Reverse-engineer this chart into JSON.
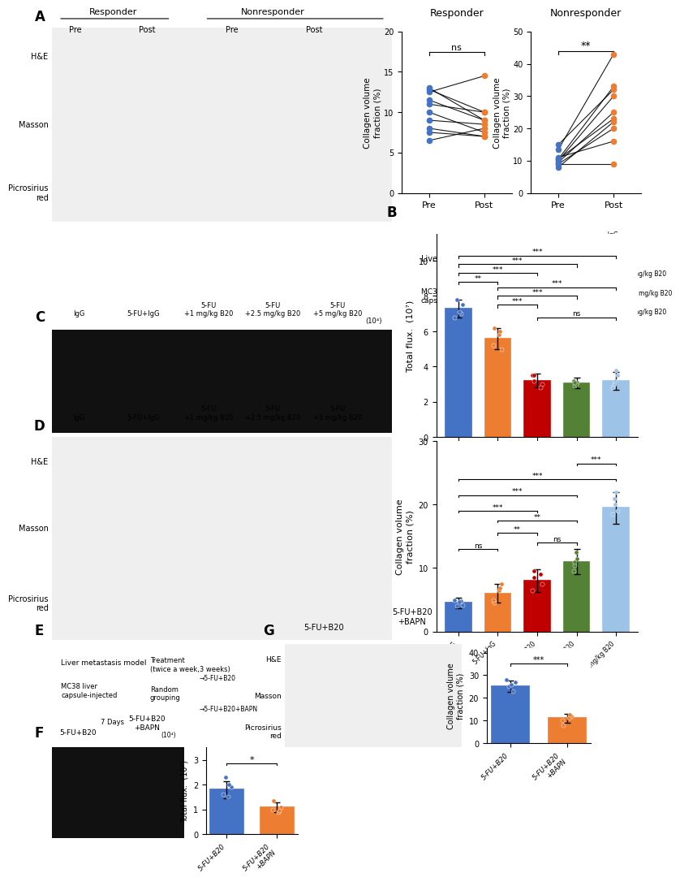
{
  "responder_pre": [
    6.5,
    11.0,
    11.5,
    12.5,
    10.0,
    9.0,
    7.5,
    8.0,
    13.0,
    12.8
  ],
  "responder_post": [
    8.0,
    10.0,
    9.0,
    14.5,
    7.5,
    8.5,
    7.0,
    7.0,
    9.0,
    10.0
  ],
  "nonresponder_pre": [
    9.0,
    10.0,
    10.5,
    8.0,
    9.5,
    15.0,
    11.0,
    13.5,
    9.0,
    10.5
  ],
  "nonresponder_post": [
    20.0,
    30.0,
    23.0,
    22.0,
    25.0,
    32.0,
    16.0,
    43.0,
    9.0,
    33.0
  ],
  "bar_C_means": [
    7.3,
    5.6,
    3.2,
    3.05,
    3.2
  ],
  "bar_C_errors": [
    0.5,
    0.6,
    0.4,
    0.3,
    0.5
  ],
  "bar_C_colors": [
    "#4472C4",
    "#ED7D31",
    "#C00000",
    "#538135",
    "#9DC3E6"
  ],
  "bar_C_dots": [
    [
      7.8,
      7.5,
      7.0,
      7.1,
      6.8
    ],
    [
      6.2,
      5.2,
      5.0,
      5.8,
      6.0
    ],
    [
      3.5,
      3.0,
      2.8,
      3.5,
      3.2
    ],
    [
      3.2,
      2.9,
      3.1,
      3.0,
      3.1
    ],
    [
      3.5,
      2.8,
      3.0,
      3.2,
      3.8
    ]
  ],
  "bar_C_xlabels": [
    "IgG",
    "5-FU+IgG",
    "5-FU+1 mg/kg B20",
    "5-FU+2.5 mg/kg B20",
    "5-FU+5 mg/kg B20"
  ],
  "bar_D_means": [
    4.5,
    6.0,
    8.0,
    11.0,
    19.5
  ],
  "bar_D_errors": [
    0.8,
    1.5,
    1.8,
    2.0,
    2.5
  ],
  "bar_D_colors": [
    "#4472C4",
    "#ED7D31",
    "#C00000",
    "#538135",
    "#9DC3E6"
  ],
  "bar_D_dots": [
    [
      4.0,
      4.2,
      4.8,
      4.7,
      5.0
    ],
    [
      4.5,
      5.0,
      7.5,
      6.5,
      6.8
    ],
    [
      6.5,
      7.5,
      9.0,
      8.5,
      9.5
    ],
    [
      9.5,
      10.5,
      11.5,
      12.5,
      11.0
    ],
    [
      19.0,
      18.5,
      21.0,
      20.0,
      22.0
    ]
  ],
  "bar_D_xlabels": [
    "IgG",
    "5-FU+IgG",
    "5-FU+1 mg/kg B20",
    "5-FU+2.5 mg/kg B20",
    "5-FU+5 mg/kg B20"
  ],
  "bar_F_means": [
    1.8,
    1.1
  ],
  "bar_F_errors": [
    0.35,
    0.2
  ],
  "bar_F_colors": [
    "#4472C4",
    "#ED7D31"
  ],
  "bar_F_dots": [
    [
      2.3,
      1.9,
      2.0,
      1.5,
      1.6
    ],
    [
      1.35,
      1.0,
      1.1,
      0.9,
      0.95
    ]
  ],
  "bar_F_xlabels": [
    "5-FU+B20",
    "5-FU+B20\n+BAPN"
  ],
  "bar_G_means": [
    25.0,
    11.0
  ],
  "bar_G_errors": [
    2.5,
    2.0
  ],
  "bar_G_colors": [
    "#4472C4",
    "#ED7D31"
  ],
  "bar_G_dots": [
    [
      25.0,
      27.0,
      23.0,
      26.0,
      28.0
    ],
    [
      8.0,
      10.0,
      12.0,
      11.0,
      12.5
    ]
  ],
  "bar_G_xlabels": [
    "5-FU+B20",
    "5-FU+B20\n+BAPN"
  ],
  "pre_color": "#4472C4",
  "post_color": "#ED7D31",
  "background_color": "#FFFFFF",
  "img_color": "#E8E8E8"
}
